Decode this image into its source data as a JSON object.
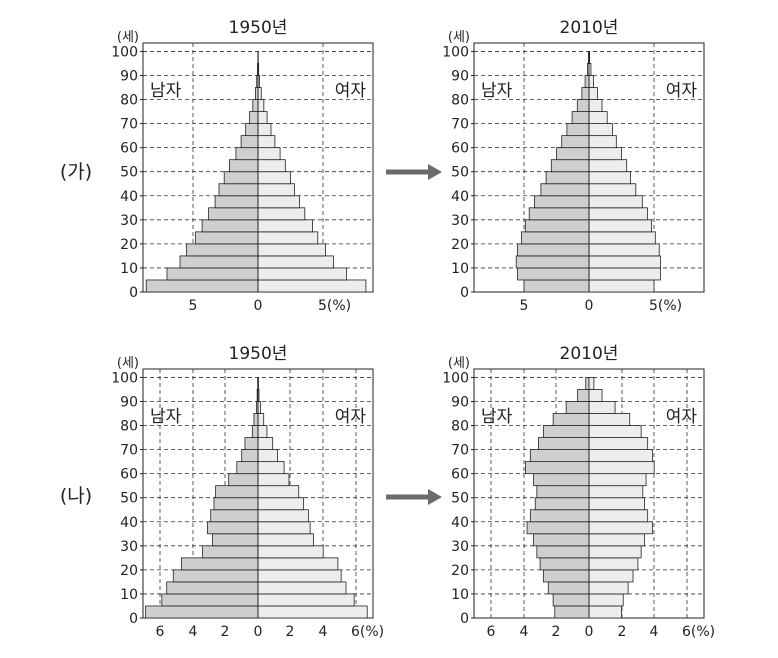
{
  "rows": [
    {
      "label": "(가)"
    },
    {
      "label": "(나)"
    }
  ],
  "arrow_color": "#6b6b6b",
  "colors": {
    "male": "#cfcfcf",
    "female": "#ededed",
    "stroke": "#222222",
    "grid": "#333333"
  },
  "chart_data": [
    {
      "id": "ga-1950",
      "type": "bar",
      "orientation": "horizontal-pyramid",
      "title": "1950년",
      "ylabel": "(세)",
      "yticks": [
        "0",
        "10",
        "20",
        "30",
        "40",
        "50",
        "60",
        "70",
        "80",
        "90",
        "100"
      ],
      "xticks_left": [
        "5"
      ],
      "xticks_center": "0",
      "xticks_right": [
        "5(%)"
      ],
      "left_label": "남자",
      "right_label": "여자",
      "xlim": [
        -10,
        10
      ],
      "ylim": [
        0,
        100
      ],
      "grid": true,
      "age_groups": [
        "0-4",
        "5-9",
        "10-14",
        "15-19",
        "20-24",
        "25-29",
        "30-34",
        "35-39",
        "40-44",
        "45-49",
        "50-54",
        "55-59",
        "60-64",
        "65-69",
        "70-74",
        "75-79",
        "80-84",
        "85-89",
        "90-94",
        "95-99"
      ],
      "series": [
        {
          "name": "남자",
          "values": [
            8.6,
            7.0,
            6.0,
            5.5,
            4.8,
            4.3,
            3.8,
            3.3,
            3.0,
            2.6,
            2.2,
            1.7,
            1.3,
            0.95,
            0.65,
            0.4,
            0.2,
            0.1,
            0.04,
            0.01
          ]
        },
        {
          "name": "여자",
          "values": [
            8.3,
            6.8,
            5.8,
            5.2,
            4.6,
            4.2,
            3.6,
            3.2,
            2.8,
            2.5,
            2.1,
            1.7,
            1.3,
            1.0,
            0.7,
            0.45,
            0.25,
            0.12,
            0.05,
            0.02
          ]
        }
      ]
    },
    {
      "id": "ga-2010",
      "type": "bar",
      "orientation": "horizontal-pyramid",
      "title": "2010년",
      "ylabel": "(세)",
      "yticks": [
        "0",
        "10",
        "20",
        "30",
        "40",
        "50",
        "60",
        "70",
        "80",
        "90",
        "100"
      ],
      "xticks_left": [
        "5"
      ],
      "xticks_center": "0",
      "xticks_right": [
        "5(%)"
      ],
      "left_label": "남자",
      "right_label": "여자",
      "xlim": [
        -10,
        10
      ],
      "ylim": [
        0,
        100
      ],
      "grid": true,
      "age_groups": [
        "0-4",
        "5-9",
        "10-14",
        "15-19",
        "20-24",
        "25-29",
        "30-34",
        "35-39",
        "40-44",
        "45-49",
        "50-54",
        "55-59",
        "60-64",
        "65-69",
        "70-74",
        "75-79",
        "80-84",
        "85-89",
        "90-94",
        "95-99"
      ],
      "series": [
        {
          "name": "남자",
          "values": [
            5.0,
            5.5,
            5.6,
            5.5,
            5.2,
            4.9,
            4.6,
            4.2,
            3.7,
            3.3,
            2.9,
            2.5,
            2.1,
            1.7,
            1.3,
            0.9,
            0.55,
            0.3,
            0.12,
            0.04
          ]
        },
        {
          "name": "여자",
          "values": [
            5.0,
            5.5,
            5.5,
            5.4,
            5.1,
            4.8,
            4.5,
            4.1,
            3.6,
            3.2,
            2.9,
            2.5,
            2.1,
            1.8,
            1.4,
            1.0,
            0.65,
            0.35,
            0.15,
            0.05
          ]
        }
      ]
    },
    {
      "id": "na-1950",
      "type": "bar",
      "orientation": "horizontal-pyramid",
      "title": "1950년",
      "ylabel": "(세)",
      "yticks": [
        "0",
        "10",
        "20",
        "30",
        "40",
        "50",
        "60",
        "70",
        "80",
        "90",
        "100"
      ],
      "xticks_left": [
        "6",
        "4",
        "2"
      ],
      "xticks_center": "0",
      "xticks_right": [
        "2",
        "4",
        "6(%)"
      ],
      "left_label": "남자",
      "right_label": "여자",
      "xlim": [
        -7,
        7
      ],
      "ylim": [
        0,
        100
      ],
      "grid": true,
      "age_groups": [
        "0-4",
        "5-9",
        "10-14",
        "15-19",
        "20-24",
        "25-29",
        "30-34",
        "35-39",
        "40-44",
        "45-49",
        "50-54",
        "55-59",
        "60-64",
        "65-69",
        "70-74",
        "75-79",
        "80-84",
        "85-89",
        "90-94",
        "95-99"
      ],
      "series": [
        {
          "name": "남자",
          "values": [
            6.9,
            5.9,
            5.6,
            5.2,
            4.7,
            3.4,
            2.8,
            3.1,
            2.9,
            2.7,
            2.6,
            1.8,
            1.3,
            1.0,
            0.8,
            0.35,
            0.25,
            0.1,
            0.05,
            0.02
          ]
        },
        {
          "name": "여자",
          "values": [
            6.7,
            5.9,
            5.4,
            5.1,
            4.9,
            4.0,
            3.4,
            3.2,
            3.1,
            2.8,
            2.5,
            1.9,
            1.6,
            1.2,
            0.9,
            0.55,
            0.35,
            0.15,
            0.06,
            0.03
          ]
        }
      ]
    },
    {
      "id": "na-2010",
      "type": "bar",
      "orientation": "horizontal-pyramid",
      "title": "2010년",
      "ylabel": "(세)",
      "yticks": [
        "0",
        "10",
        "20",
        "30",
        "40",
        "50",
        "60",
        "70",
        "80",
        "90",
        "100"
      ],
      "xticks_left": [
        "6",
        "4",
        "2"
      ],
      "xticks_center": "0",
      "xticks_right": [
        "2",
        "4",
        "6(%)"
      ],
      "left_label": "남자",
      "right_label": "여자",
      "xlim": [
        -7,
        7
      ],
      "ylim": [
        0,
        100
      ],
      "grid": true,
      "age_groups": [
        "0-4",
        "5-9",
        "10-14",
        "15-19",
        "20-24",
        "25-29",
        "30-34",
        "35-39",
        "40-44",
        "45-49",
        "50-54",
        "55-59",
        "60-64",
        "65-69",
        "70-74",
        "75-79",
        "80-84",
        "85-89",
        "90-94",
        "95-99"
      ],
      "series": [
        {
          "name": "남자",
          "values": [
            2.1,
            2.2,
            2.5,
            2.8,
            3.0,
            3.2,
            3.4,
            3.8,
            3.6,
            3.3,
            3.2,
            3.4,
            3.9,
            3.6,
            3.1,
            2.8,
            2.2,
            1.4,
            0.7,
            0.2
          ]
        },
        {
          "name": "여자",
          "values": [
            2.0,
            2.1,
            2.4,
            2.7,
            3.0,
            3.2,
            3.4,
            3.9,
            3.6,
            3.4,
            3.3,
            3.5,
            4.0,
            3.9,
            3.6,
            3.2,
            2.5,
            1.6,
            0.8,
            0.3
          ]
        }
      ]
    }
  ]
}
